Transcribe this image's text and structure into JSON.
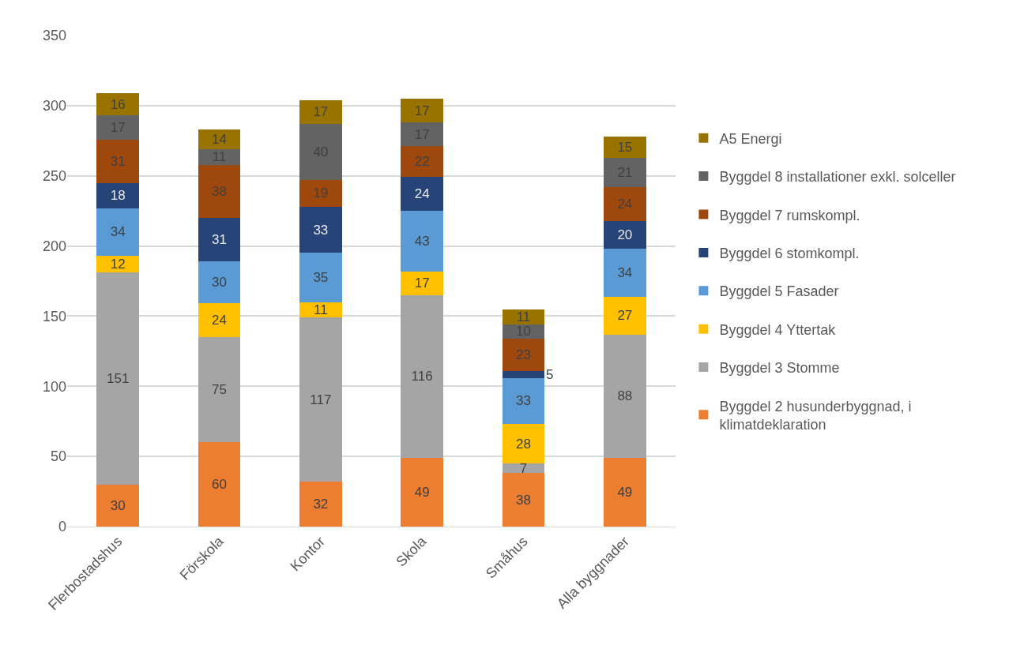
{
  "chart_data": {
    "type": "bar",
    "stacked": true,
    "data_labels": true,
    "grid": "y",
    "legend": "right",
    "categories": [
      "Flerbostadshus",
      "Förskola",
      "Kontor",
      "Skola",
      "Småhus",
      "Alla byggnader"
    ],
    "ylim": [
      0,
      350
    ],
    "yticks": [
      0,
      50,
      100,
      150,
      200,
      250,
      300,
      350
    ],
    "series": [
      {
        "name": "Byggdel 2 husunderbyggnad, i klimatdeklaration",
        "color": "#ed7d31",
        "values": [
          30,
          60,
          32,
          49,
          38,
          49
        ]
      },
      {
        "name": "Byggdel 3 Stomme",
        "color": "#a5a5a5",
        "values": [
          151,
          75,
          117,
          116,
          7,
          88
        ]
      },
      {
        "name": "Byggdel 4 Yttertak",
        "color": "#ffc000",
        "values": [
          12,
          24,
          11,
          17,
          28,
          27
        ]
      },
      {
        "name": "Byggdel 5 Fasader",
        "color": "#5b9bd5",
        "values": [
          34,
          30,
          35,
          43,
          33,
          34
        ]
      },
      {
        "name": "Byggdel 6 stomkompl.",
        "color": "#264478",
        "values": [
          18,
          31,
          33,
          24,
          5,
          20
        ]
      },
      {
        "name": "Byggdel 7 rumskompl.",
        "color": "#9e480e",
        "values": [
          31,
          38,
          19,
          22,
          23,
          24
        ]
      },
      {
        "name": "Byggdel 8 installationer exkl. solceller",
        "color": "#636363",
        "values": [
          17,
          11,
          40,
          17,
          10,
          21
        ]
      },
      {
        "name": "A5 Energi",
        "color": "#997300",
        "values": [
          16,
          14,
          17,
          17,
          11,
          15
        ]
      }
    ]
  }
}
